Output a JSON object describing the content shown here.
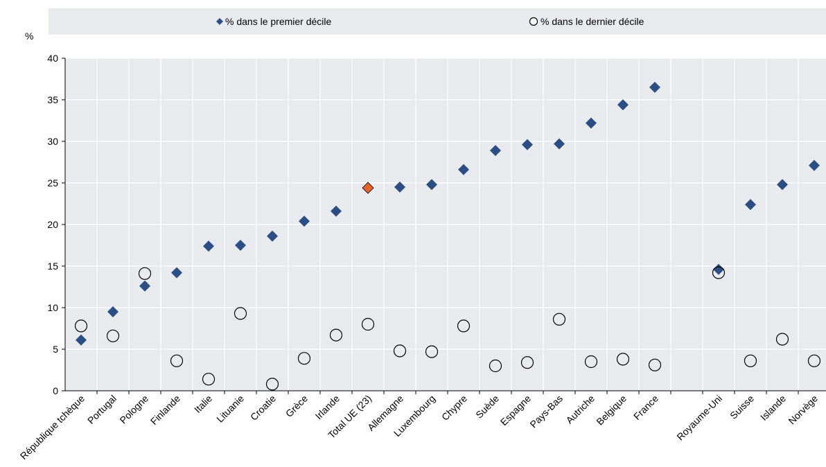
{
  "chart_data": {
    "type": "scatter",
    "title": "",
    "ylabel": "%",
    "xlabel": "",
    "ylim": [
      0,
      40
    ],
    "yticks": [
      0,
      5,
      10,
      15,
      20,
      25,
      30,
      35,
      40
    ],
    "grid": true,
    "legend_placement": "top",
    "categories": [
      "République tchèque",
      "Portugal",
      "Pologne",
      "Finlande",
      "Italie",
      "Lituanie",
      "Croatie",
      "Grèce",
      "Irlande",
      "Total UE (23)",
      "Allemagne",
      "Luxembourg",
      "Chypre",
      "Suède",
      "Espagne",
      "Pays-Bas",
      "Autriche",
      "Belgique",
      "France",
      "Royaume-Uni",
      "Suisse",
      "Islande",
      "Norvège"
    ],
    "highlight_category": "Total UE (23)",
    "series": [
      {
        "name": "% dans le premier décile",
        "marker": "diamond",
        "color": "#2b4f85",
        "highlight_color": "#e8632b",
        "values": [
          6.1,
          9.5,
          12.6,
          14.2,
          17.4,
          17.5,
          18.6,
          20.4,
          21.6,
          24.4,
          24.5,
          24.8,
          26.6,
          28.9,
          29.6,
          29.7,
          32.2,
          34.4,
          36.5,
          14.6,
          22.4,
          24.8,
          27.1
        ]
      },
      {
        "name": "% dans le dernier décile",
        "marker": "circle-open",
        "color": "#000000",
        "values": [
          7.8,
          6.6,
          14.1,
          3.6,
          1.4,
          9.3,
          0.8,
          3.9,
          6.7,
          8.0,
          4.8,
          4.7,
          7.8,
          3.0,
          3.4,
          8.6,
          3.5,
          3.8,
          3.1,
          14.2,
          3.6,
          6.2,
          3.6
        ]
      }
    ]
  }
}
